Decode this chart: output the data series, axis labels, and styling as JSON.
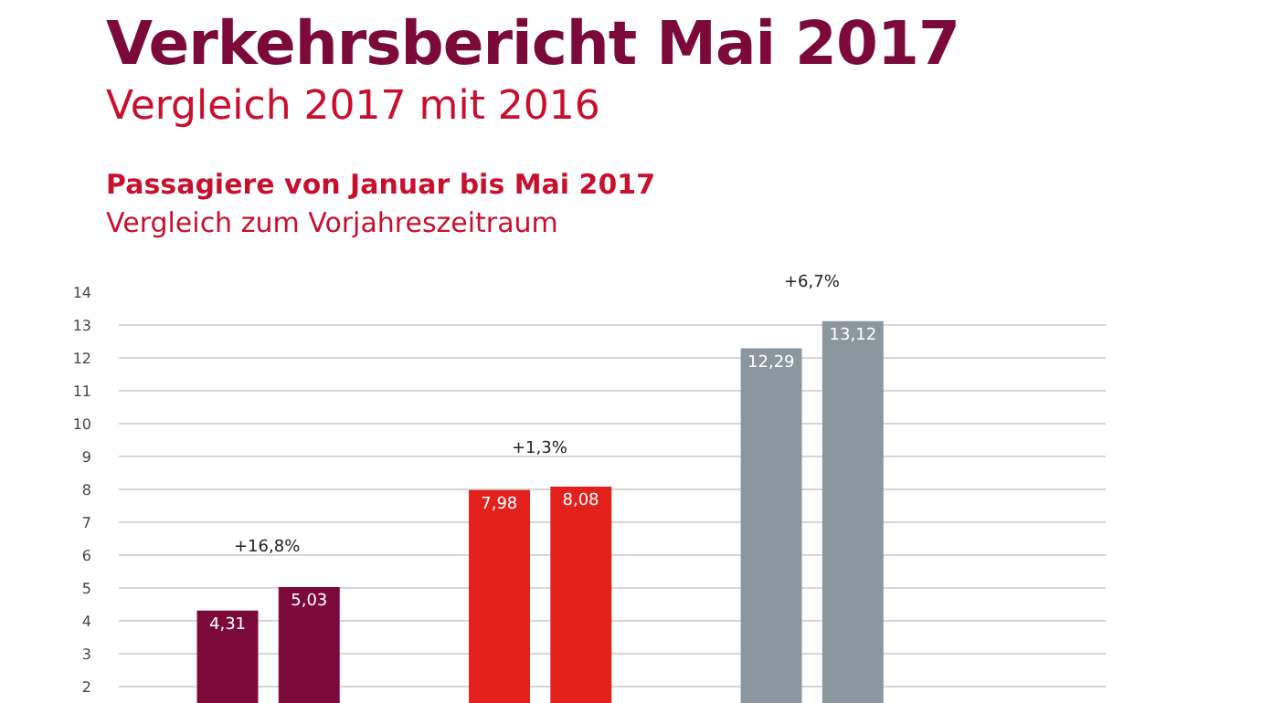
{
  "chart_data": {
    "type": "bar",
    "title": "Verkehrsbericht Mai 2017",
    "subtitle": "Vergleich 2017 mit 2016",
    "annotations": [
      "Passagiere von Januar bis Mai 2017",
      "Vergleich zum Vorjahreszeitraum",
      "+16,8%",
      "+1,3%",
      "+6,7%"
    ],
    "categories": [
      null,
      null,
      null
    ],
    "series": [
      {
        "colors": [
          "#7b0a3b",
          "#e2211c",
          "#8a979f"
        ],
        "values": [
          4.31,
          7.98,
          12.29
        ],
        "value_labels": [
          "4,31",
          "7,98",
          "12,29"
        ]
      },
      {
        "colors": [
          "#7b0a3b",
          "#e2211c",
          "#8a979f"
        ],
        "values": [
          5.03,
          8.08,
          13.12
        ],
        "value_labels": [
          "5,03",
          "8,08",
          "13,12"
        ]
      }
    ],
    "ylim": [
      1.5,
      14
    ],
    "yticks": [
      2,
      3,
      4,
      5,
      6,
      7,
      8,
      9,
      10,
      11,
      12,
      13,
      14
    ],
    "grid": "y"
  }
}
